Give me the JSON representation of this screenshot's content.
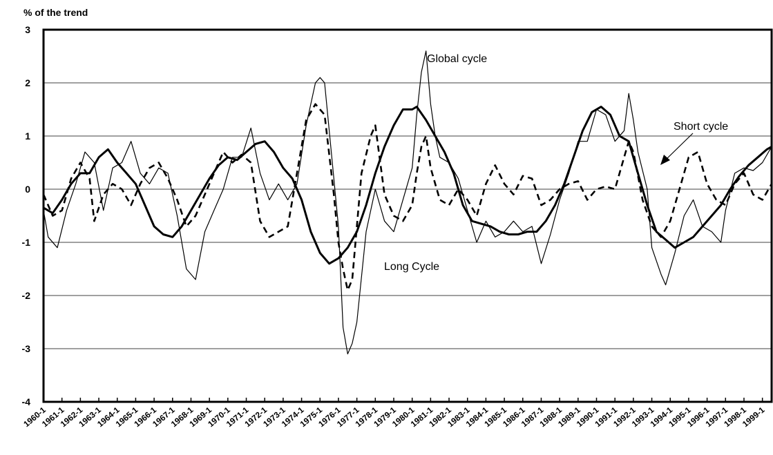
{
  "chart_data": {
    "type": "line",
    "ylabel": "% of the trend",
    "ylim": [
      -4,
      3
    ],
    "yticks": [
      "3",
      "2",
      "1",
      "0",
      "-1",
      "-2",
      "-3",
      "-4"
    ],
    "grid": true,
    "x_start_year": 1960,
    "periods_per_year": 4,
    "x_tick_labels": [
      "1960-1",
      "1961-1",
      "1962-1",
      "1963-1",
      "1964-1",
      "1965-1",
      "1966-1",
      "1967-1",
      "1968-1",
      "1969-1",
      "1970-1",
      "1971-1",
      "1972-1",
      "1973-1",
      "1974-1",
      "1975-1",
      "1976-1",
      "1977-1",
      "1978-1",
      "1979-1",
      "1980-1",
      "1981-1",
      "1982-1",
      "1983-1",
      "1984-1",
      "1985-1",
      "1986-1",
      "1987-1",
      "1988-1",
      "1989-1",
      "1990-1",
      "1991-1",
      "1992-1",
      "1993-1",
      "1994-1",
      "1995-1",
      "1996-1",
      "1997-1",
      "1998-1",
      "1999-1"
    ],
    "annotations": {
      "global": "Global cycle",
      "short": "Short cycle",
      "long": "Long Cycle"
    },
    "series": [
      {
        "name": "Global cycle",
        "style": "thin",
        "keypoints": [
          [
            0,
            -0.4
          ],
          [
            1,
            -0.9
          ],
          [
            3,
            -1.1
          ],
          [
            5,
            -0.4
          ],
          [
            7,
            0.1
          ],
          [
            9,
            0.7
          ],
          [
            11,
            0.5
          ],
          [
            13,
            -0.4
          ],
          [
            15,
            0.4
          ],
          [
            17,
            0.5
          ],
          [
            19,
            0.9
          ],
          [
            21,
            0.3
          ],
          [
            23,
            0.1
          ],
          [
            25,
            0.4
          ],
          [
            27,
            0.3
          ],
          [
            29,
            -0.5
          ],
          [
            31,
            -1.5
          ],
          [
            33,
            -1.7
          ],
          [
            35,
            -0.8
          ],
          [
            37,
            -0.4
          ],
          [
            39,
            0.0
          ],
          [
            41,
            0.6
          ],
          [
            43,
            0.6
          ],
          [
            45,
            1.15
          ],
          [
            47,
            0.3
          ],
          [
            49,
            -0.2
          ],
          [
            51,
            0.1
          ],
          [
            53,
            -0.2
          ],
          [
            55,
            0.1
          ],
          [
            57,
            1.2
          ],
          [
            59,
            2.0
          ],
          [
            60,
            2.1
          ],
          [
            61,
            2.0
          ],
          [
            63,
            0.2
          ],
          [
            64,
            -0.7
          ],
          [
            65,
            -2.6
          ],
          [
            66,
            -3.1
          ],
          [
            67,
            -2.9
          ],
          [
            68,
            -2.5
          ],
          [
            70,
            -0.8
          ],
          [
            72,
            0.0
          ],
          [
            74,
            -0.6
          ],
          [
            76,
            -0.8
          ],
          [
            78,
            -0.2
          ],
          [
            80,
            0.4
          ],
          [
            81,
            1.4
          ],
          [
            82,
            2.2
          ],
          [
            83,
            2.6
          ],
          [
            84,
            1.6
          ],
          [
            85,
            1.0
          ],
          [
            86,
            0.6
          ],
          [
            88,
            0.5
          ],
          [
            90,
            0.2
          ],
          [
            92,
            -0.4
          ],
          [
            94,
            -1.0
          ],
          [
            96,
            -0.6
          ],
          [
            98,
            -0.9
          ],
          [
            100,
            -0.8
          ],
          [
            102,
            -0.6
          ],
          [
            104,
            -0.8
          ],
          [
            106,
            -0.7
          ],
          [
            108,
            -1.4
          ],
          [
            110,
            -0.85
          ],
          [
            112,
            -0.2
          ],
          [
            114,
            0.3
          ],
          [
            116,
            0.9
          ],
          [
            118,
            0.9
          ],
          [
            120,
            1.5
          ],
          [
            122,
            1.4
          ],
          [
            124,
            0.9
          ],
          [
            126,
            1.1
          ],
          [
            127,
            1.8
          ],
          [
            128,
            1.3
          ],
          [
            129,
            0.7
          ],
          [
            131,
            0.0
          ],
          [
            132,
            -1.1
          ],
          [
            134,
            -1.6
          ],
          [
            135,
            -1.8
          ],
          [
            137,
            -1.2
          ],
          [
            139,
            -0.5
          ],
          [
            141,
            -0.2
          ],
          [
            143,
            -0.7
          ],
          [
            145,
            -0.8
          ],
          [
            147,
            -1.0
          ],
          [
            148,
            -0.4
          ],
          [
            150,
            0.3
          ],
          [
            152,
            0.4
          ],
          [
            154,
            0.35
          ],
          [
            156,
            0.5
          ],
          [
            158,
            0.8
          ]
        ]
      },
      {
        "name": "Short cycle",
        "style": "dashed",
        "keypoints": [
          [
            0,
            -0.1
          ],
          [
            2,
            -0.5
          ],
          [
            4,
            -0.4
          ],
          [
            6,
            0.2
          ],
          [
            8,
            0.5
          ],
          [
            10,
            0.2
          ],
          [
            11,
            -0.6
          ],
          [
            13,
            -0.1
          ],
          [
            15,
            0.1
          ],
          [
            17,
            0.0
          ],
          [
            19,
            -0.3
          ],
          [
            21,
            0.1
          ],
          [
            23,
            0.4
          ],
          [
            25,
            0.5
          ],
          [
            27,
            0.2
          ],
          [
            29,
            -0.2
          ],
          [
            31,
            -0.7
          ],
          [
            33,
            -0.5
          ],
          [
            35,
            -0.1
          ],
          [
            37,
            0.3
          ],
          [
            39,
            0.7
          ],
          [
            41,
            0.5
          ],
          [
            43,
            0.65
          ],
          [
            45,
            0.5
          ],
          [
            47,
            -0.6
          ],
          [
            49,
            -0.9
          ],
          [
            51,
            -0.8
          ],
          [
            53,
            -0.7
          ],
          [
            55,
            0.3
          ],
          [
            57,
            1.3
          ],
          [
            59,
            1.6
          ],
          [
            61,
            1.4
          ],
          [
            63,
            -0.1
          ],
          [
            64,
            -1.0
          ],
          [
            65,
            -1.5
          ],
          [
            66,
            -1.9
          ],
          [
            67,
            -1.7
          ],
          [
            69,
            0.3
          ],
          [
            71,
            1.0
          ],
          [
            72,
            1.2
          ],
          [
            74,
            -0.1
          ],
          [
            76,
            -0.5
          ],
          [
            78,
            -0.6
          ],
          [
            80,
            -0.3
          ],
          [
            81,
            0.3
          ],
          [
            82,
            0.8
          ],
          [
            83,
            1.0
          ],
          [
            84,
            0.4
          ],
          [
            86,
            -0.2
          ],
          [
            88,
            -0.3
          ],
          [
            90,
            0.0
          ],
          [
            92,
            -0.2
          ],
          [
            94,
            -0.5
          ],
          [
            96,
            0.1
          ],
          [
            98,
            0.45
          ],
          [
            100,
            0.1
          ],
          [
            102,
            -0.1
          ],
          [
            104,
            0.25
          ],
          [
            106,
            0.2
          ],
          [
            108,
            -0.3
          ],
          [
            110,
            -0.2
          ],
          [
            112,
            0.0
          ],
          [
            114,
            0.1
          ],
          [
            116,
            0.15
          ],
          [
            118,
            -0.2
          ],
          [
            120,
            0.0
          ],
          [
            122,
            0.05
          ],
          [
            124,
            0.0
          ],
          [
            126,
            0.6
          ],
          [
            127,
            0.9
          ],
          [
            128,
            0.7
          ],
          [
            130,
            -0.2
          ],
          [
            132,
            -0.7
          ],
          [
            134,
            -0.9
          ],
          [
            136,
            -0.6
          ],
          [
            138,
            0.0
          ],
          [
            140,
            0.6
          ],
          [
            142,
            0.7
          ],
          [
            144,
            0.1
          ],
          [
            146,
            -0.2
          ],
          [
            148,
            -0.3
          ],
          [
            150,
            0.1
          ],
          [
            152,
            0.3
          ],
          [
            154,
            -0.1
          ],
          [
            156,
            -0.2
          ],
          [
            158,
            0.1
          ]
        ]
      },
      {
        "name": "Long Cycle",
        "style": "thick",
        "keypoints": [
          [
            0,
            -0.35
          ],
          [
            2,
            -0.45
          ],
          [
            4,
            -0.2
          ],
          [
            6,
            0.1
          ],
          [
            8,
            0.3
          ],
          [
            10,
            0.3
          ],
          [
            12,
            0.6
          ],
          [
            14,
            0.75
          ],
          [
            16,
            0.5
          ],
          [
            18,
            0.3
          ],
          [
            20,
            0.1
          ],
          [
            22,
            -0.3
          ],
          [
            24,
            -0.7
          ],
          [
            26,
            -0.85
          ],
          [
            28,
            -0.9
          ],
          [
            30,
            -0.7
          ],
          [
            32,
            -0.4
          ],
          [
            34,
            -0.1
          ],
          [
            36,
            0.2
          ],
          [
            38,
            0.45
          ],
          [
            40,
            0.6
          ],
          [
            42,
            0.55
          ],
          [
            44,
            0.7
          ],
          [
            46,
            0.85
          ],
          [
            48,
            0.9
          ],
          [
            50,
            0.7
          ],
          [
            52,
            0.4
          ],
          [
            54,
            0.2
          ],
          [
            56,
            -0.2
          ],
          [
            58,
            -0.8
          ],
          [
            60,
            -1.2
          ],
          [
            62,
            -1.4
          ],
          [
            64,
            -1.3
          ],
          [
            66,
            -1.1
          ],
          [
            68,
            -0.8
          ],
          [
            70,
            -0.3
          ],
          [
            72,
            0.3
          ],
          [
            74,
            0.8
          ],
          [
            76,
            1.2
          ],
          [
            78,
            1.5
          ],
          [
            80,
            1.5
          ],
          [
            81,
            1.55
          ],
          [
            83,
            1.3
          ],
          [
            85,
            1.0
          ],
          [
            87,
            0.7
          ],
          [
            89,
            0.3
          ],
          [
            91,
            -0.3
          ],
          [
            93,
            -0.6
          ],
          [
            95,
            -0.65
          ],
          [
            97,
            -0.7
          ],
          [
            99,
            -0.8
          ],
          [
            101,
            -0.85
          ],
          [
            103,
            -0.85
          ],
          [
            105,
            -0.8
          ],
          [
            107,
            -0.8
          ],
          [
            109,
            -0.6
          ],
          [
            111,
            -0.3
          ],
          [
            113,
            0.1
          ],
          [
            115,
            0.6
          ],
          [
            117,
            1.1
          ],
          [
            119,
            1.45
          ],
          [
            121,
            1.55
          ],
          [
            123,
            1.4
          ],
          [
            125,
            1.0
          ],
          [
            127,
            0.9
          ],
          [
            129,
            0.3
          ],
          [
            131,
            -0.3
          ],
          [
            133,
            -0.8
          ],
          [
            135,
            -0.95
          ],
          [
            137,
            -1.1
          ],
          [
            139,
            -1.0
          ],
          [
            141,
            -0.9
          ],
          [
            143,
            -0.7
          ],
          [
            145,
            -0.5
          ],
          [
            147,
            -0.3
          ],
          [
            149,
            0.0
          ],
          [
            151,
            0.25
          ],
          [
            153,
            0.45
          ],
          [
            155,
            0.6
          ],
          [
            157,
            0.75
          ],
          [
            158,
            0.8
          ]
        ]
      }
    ]
  }
}
